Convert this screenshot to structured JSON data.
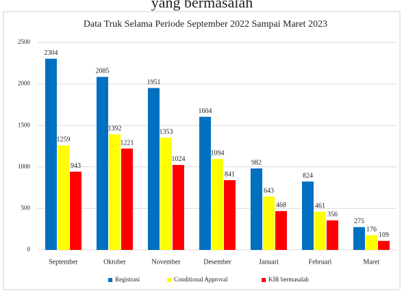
{
  "caption": "yang bermasalah",
  "chart_data": {
    "type": "bar",
    "title": "Data Truk Selama Periode September 2022 Sampai Maret 2023",
    "categories": [
      "September",
      "Oktober",
      "November",
      "Desember",
      "Januari",
      "Februari",
      "Maret"
    ],
    "series": [
      {
        "name": "Registrasi",
        "color": "#0070c0",
        "values": [
          2304,
          2085,
          1951,
          1604,
          982,
          824,
          275
        ]
      },
      {
        "name": "Conditional Approval",
        "color": "#ffff00",
        "values": [
          1259,
          1392,
          1353,
          1094,
          643,
          461,
          176
        ]
      },
      {
        "name": "KIR bermasalah",
        "color": "#ff0000",
        "values": [
          943,
          1221,
          1024,
          841,
          468,
          356,
          109
        ]
      }
    ],
    "ylim": [
      0,
      2500
    ],
    "yticks": [
      0,
      500,
      1000,
      1500,
      2000,
      2500
    ],
    "grid": true,
    "legend": "bottom"
  }
}
